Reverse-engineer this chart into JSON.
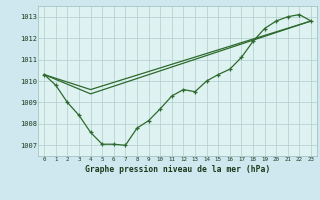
{
  "background_color": "#cfe8ef",
  "plot_bg_color": "#dff2f2",
  "grid_color": "#b0cccc",
  "line_color": "#2d6a2d",
  "title": "Graphe pression niveau de la mer (hPa)",
  "xlim": [
    -0.5,
    23.5
  ],
  "ylim": [
    1006.5,
    1013.5
  ],
  "yticks": [
    1007,
    1008,
    1009,
    1010,
    1011,
    1012,
    1013
  ],
  "xticks": [
    0,
    1,
    2,
    3,
    4,
    5,
    6,
    7,
    8,
    9,
    10,
    11,
    12,
    13,
    14,
    15,
    16,
    17,
    18,
    19,
    20,
    21,
    22,
    23
  ],
  "series1_x": [
    0,
    1,
    2,
    3,
    4,
    5,
    6,
    7,
    8,
    9,
    10,
    11,
    12,
    13,
    14,
    15,
    16,
    17,
    18,
    19,
    20,
    21,
    22,
    23
  ],
  "series1_y": [
    1010.3,
    1009.8,
    1009.0,
    1008.4,
    1007.6,
    1007.05,
    1007.05,
    1007.0,
    1007.8,
    1008.15,
    1008.7,
    1009.3,
    1009.6,
    1009.5,
    1010.0,
    1010.3,
    1010.55,
    1011.1,
    1011.85,
    1012.45,
    1012.8,
    1013.0,
    1013.1,
    1012.8
  ],
  "series2_x": [
    0,
    4,
    23
  ],
  "series2_y": [
    1010.3,
    1009.4,
    1012.8
  ],
  "series3_x": [
    0,
    4,
    23
  ],
  "series3_y": [
    1010.3,
    1009.6,
    1012.8
  ]
}
